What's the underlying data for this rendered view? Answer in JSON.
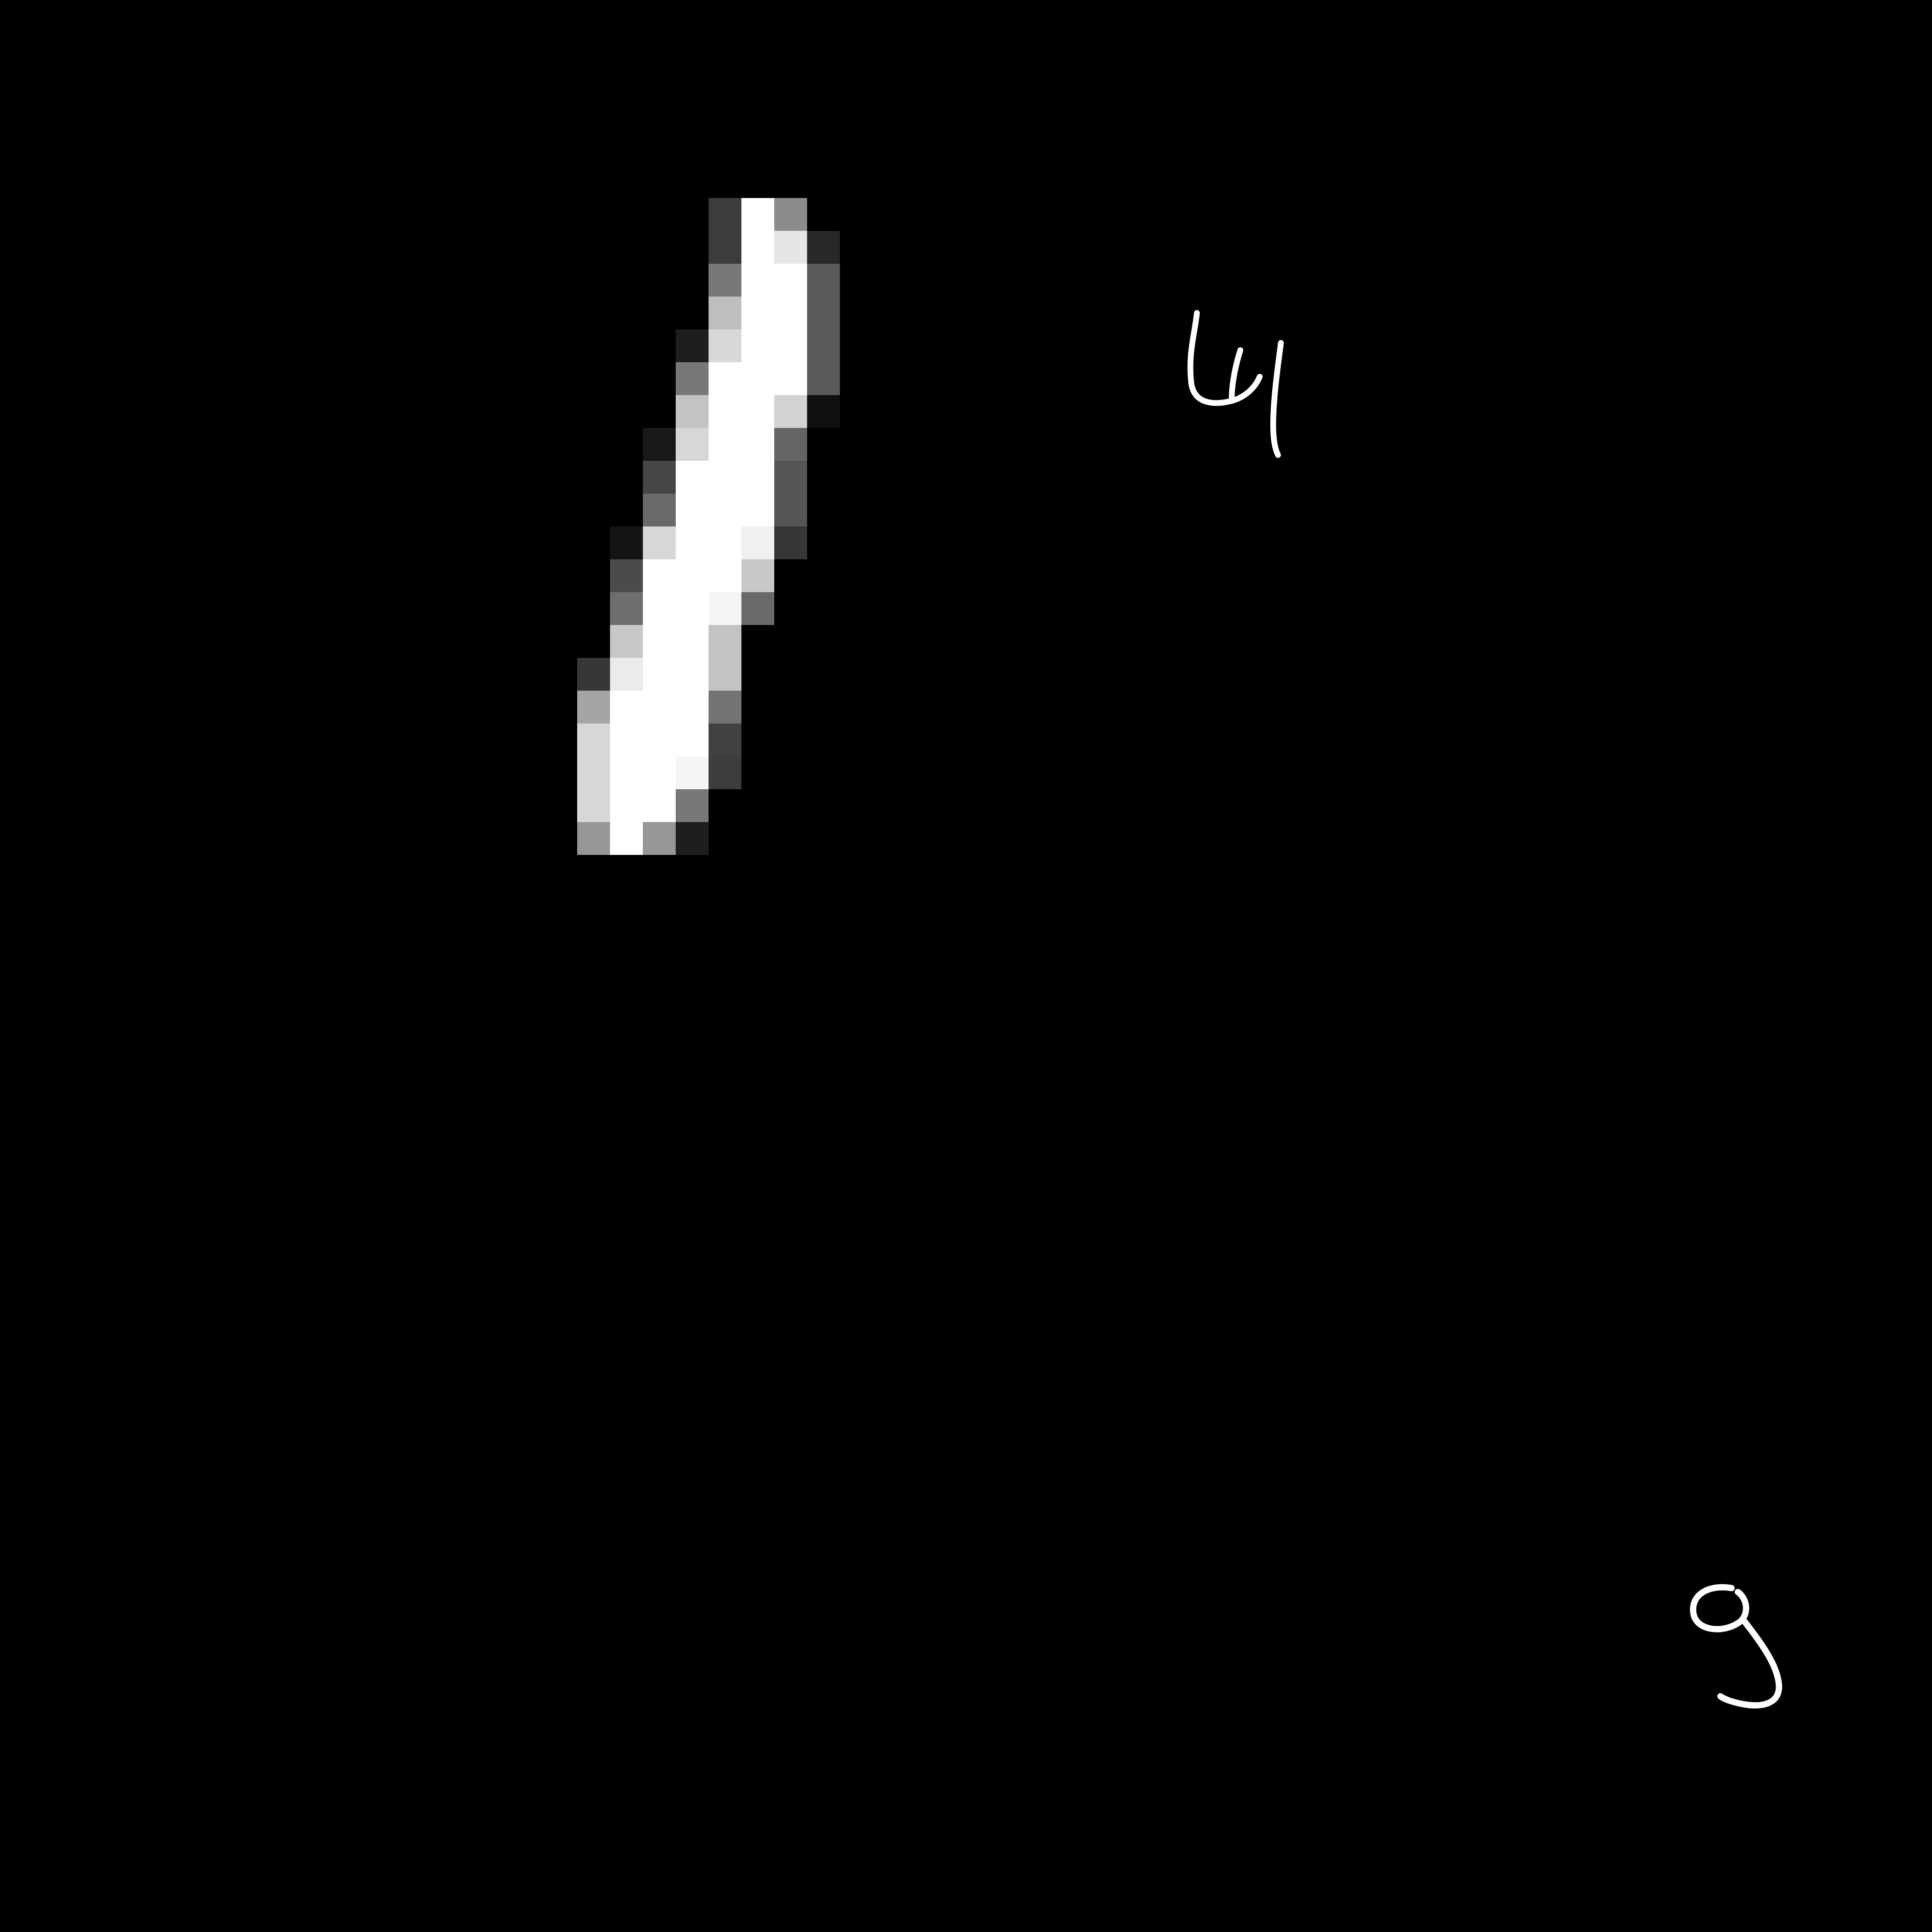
{
  "canvas": {
    "background_color": "#000000",
    "foreground_color": "#ffffff"
  },
  "digits": [
    {
      "label": "1",
      "style": "pixelated-large",
      "icon": "pixelated-digit-one-icon"
    },
    {
      "label": "4",
      "style": "handwritten-small",
      "icon": "handwritten-digit-four-icon"
    },
    {
      "label": "9",
      "style": "handwritten-small",
      "icon": "handwritten-digit-nine-icon"
    }
  ]
}
